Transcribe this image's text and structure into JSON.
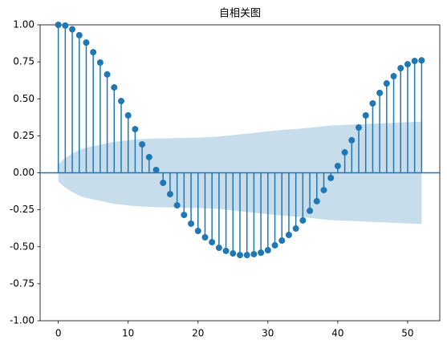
{
  "chart_data": {
    "type": "stem",
    "title": "自相关图",
    "x": [
      0,
      1,
      2,
      3,
      4,
      5,
      6,
      7,
      8,
      9,
      10,
      11,
      12,
      13,
      14,
      15,
      16,
      17,
      18,
      19,
      20,
      21,
      22,
      23,
      24,
      25,
      26,
      27,
      28,
      29,
      30,
      31,
      32,
      33,
      34,
      35,
      36,
      37,
      38,
      39,
      40,
      41,
      42,
      43,
      44,
      45,
      46,
      47,
      48,
      49,
      50,
      51,
      52
    ],
    "values": [
      1.0,
      0.995,
      0.97,
      0.93,
      0.88,
      0.815,
      0.745,
      0.665,
      0.577,
      0.485,
      0.388,
      0.295,
      0.192,
      0.106,
      0.019,
      -0.068,
      -0.144,
      -0.22,
      -0.285,
      -0.344,
      -0.393,
      -0.436,
      -0.469,
      -0.507,
      -0.528,
      -0.545,
      -0.556,
      -0.556,
      -0.55,
      -0.54,
      -0.523,
      -0.49,
      -0.458,
      -0.42,
      -0.377,
      -0.322,
      -0.257,
      -0.192,
      -0.117,
      -0.035,
      0.046,
      0.138,
      0.22,
      0.306,
      0.388,
      0.469,
      0.54,
      0.604,
      0.653,
      0.707,
      0.734,
      0.756,
      0.76
    ],
    "confint": [
      0.06,
      0.1,
      0.13,
      0.155,
      0.17,
      0.18,
      0.19,
      0.2,
      0.21,
      0.215,
      0.22,
      0.225,
      0.228,
      0.23,
      0.232,
      0.233,
      0.234,
      0.235,
      0.236,
      0.237,
      0.238,
      0.24,
      0.242,
      0.245,
      0.25,
      0.255,
      0.26,
      0.265,
      0.27,
      0.275,
      0.28,
      0.285,
      0.29,
      0.293,
      0.296,
      0.3,
      0.305,
      0.31,
      0.315,
      0.32,
      0.322,
      0.324,
      0.326,
      0.328,
      0.33,
      0.332,
      0.334,
      0.336,
      0.338,
      0.34,
      0.342,
      0.344,
      0.346
    ],
    "color": "#1f77b4",
    "xlim": [
      -2.6,
      54.6
    ],
    "xticks": [
      0,
      10,
      20,
      30,
      40,
      50
    ],
    "ylim": [
      -1,
      1
    ],
    "yticks": [
      {
        "value": -1,
        "label": "-1.00"
      },
      {
        "value": -0.75,
        "label": "-0.75"
      },
      {
        "value": -0.5,
        "label": "-0.50"
      },
      {
        "value": -0.25,
        "label": "-0.25"
      },
      {
        "value": 0,
        "label": "0.00"
      },
      {
        "value": 0.25,
        "label": "0.25"
      },
      {
        "value": 0.5,
        "label": "0.50"
      },
      {
        "value": 0.75,
        "label": "0.75"
      },
      {
        "value": 1,
        "label": "1.00"
      }
    ]
  }
}
